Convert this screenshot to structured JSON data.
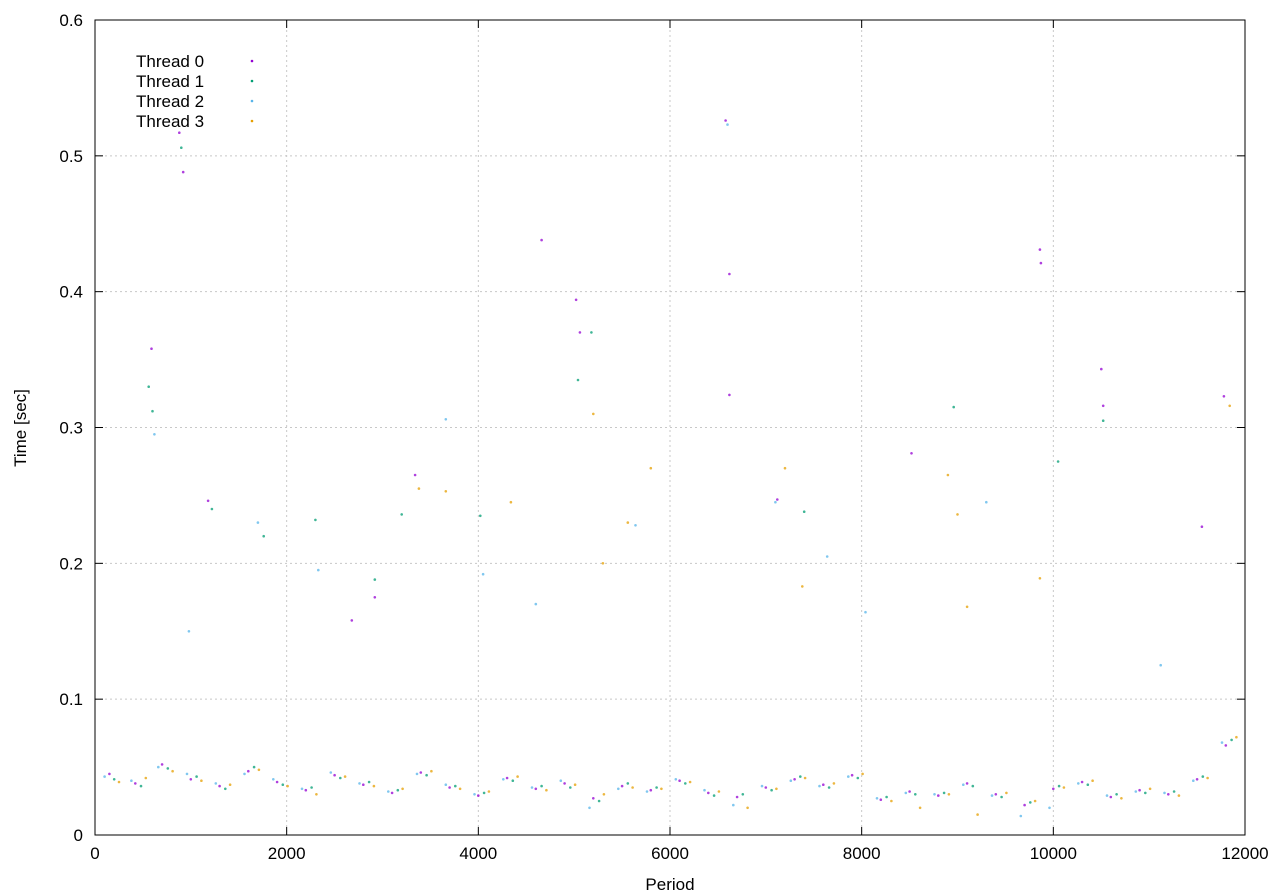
{
  "chart_data": {
    "type": "scatter",
    "title": "",
    "xlabel": "Period",
    "ylabel": "Time [sec]",
    "xlim": [
      0,
      12000
    ],
    "ylim": [
      0,
      0.6
    ],
    "xticks": [
      0,
      2000,
      4000,
      6000,
      8000,
      10000,
      12000
    ],
    "yticks": [
      0,
      0.1,
      0.2,
      0.3,
      0.4,
      0.5,
      0.6
    ],
    "xtick_labels": [
      "0",
      "2000",
      "4000",
      "6000",
      "8000",
      "10000",
      "12000"
    ],
    "ytick_labels": [
      "0",
      "0.1",
      "0.2",
      "0.3",
      "0.4",
      "0.5",
      "0.6"
    ],
    "grid": true,
    "legend_position": "top-left",
    "series": [
      {
        "name": "Thread 0",
        "color": "#9400d3",
        "points": [
          [
            150,
            0.045
          ],
          [
            420,
            0.038
          ],
          [
            700,
            0.052
          ],
          [
            1000,
            0.041
          ],
          [
            1300,
            0.036
          ],
          [
            1600,
            0.047
          ],
          [
            1900,
            0.039
          ],
          [
            2200,
            0.033
          ],
          [
            2500,
            0.044
          ],
          [
            2800,
            0.037
          ],
          [
            3100,
            0.031
          ],
          [
            3400,
            0.046
          ],
          [
            3700,
            0.035
          ],
          [
            4000,
            0.029
          ],
          [
            4300,
            0.042
          ],
          [
            4600,
            0.034
          ],
          [
            4900,
            0.038
          ],
          [
            5200,
            0.027
          ],
          [
            5500,
            0.036
          ],
          [
            5800,
            0.033
          ],
          [
            6100,
            0.04
          ],
          [
            6400,
            0.031
          ],
          [
            6700,
            0.028
          ],
          [
            7000,
            0.035
          ],
          [
            7300,
            0.041
          ],
          [
            7600,
            0.037
          ],
          [
            7900,
            0.044
          ],
          [
            8200,
            0.026
          ],
          [
            8500,
            0.032
          ],
          [
            8800,
            0.029
          ],
          [
            9100,
            0.038
          ],
          [
            9400,
            0.03
          ],
          [
            9700,
            0.022
          ],
          [
            10000,
            0.034
          ],
          [
            10300,
            0.039
          ],
          [
            10600,
            0.028
          ],
          [
            10900,
            0.033
          ],
          [
            11200,
            0.03
          ],
          [
            11500,
            0.041
          ],
          [
            11800,
            0.066
          ],
          [
            880,
            0.517
          ],
          [
            920,
            0.488
          ],
          [
            590,
            0.358
          ],
          [
            1180,
            0.246
          ],
          [
            2680,
            0.158
          ],
          [
            2920,
            0.175
          ],
          [
            6580,
            0.526
          ],
          [
            6620,
            0.413
          ],
          [
            9860,
            0.431
          ],
          [
            9870,
            0.421
          ],
          [
            10500,
            0.343
          ],
          [
            10520,
            0.316
          ],
          [
            11780,
            0.323
          ],
          [
            5020,
            0.394
          ],
          [
            4660,
            0.438
          ],
          [
            5060,
            0.37
          ],
          [
            3340,
            0.265
          ],
          [
            6620,
            0.324
          ],
          [
            7120,
            0.247
          ],
          [
            8520,
            0.281
          ],
          [
            11550,
            0.227
          ]
        ]
      },
      {
        "name": "Thread 1",
        "color": "#009e73",
        "points": [
          [
            200,
            0.041
          ],
          [
            480,
            0.036
          ],
          [
            760,
            0.049
          ],
          [
            1060,
            0.043
          ],
          [
            1360,
            0.034
          ],
          [
            1660,
            0.05
          ],
          [
            1960,
            0.037
          ],
          [
            2260,
            0.035
          ],
          [
            2560,
            0.042
          ],
          [
            2860,
            0.039
          ],
          [
            3160,
            0.033
          ],
          [
            3460,
            0.044
          ],
          [
            3760,
            0.036
          ],
          [
            4060,
            0.031
          ],
          [
            4360,
            0.04
          ],
          [
            4660,
            0.036
          ],
          [
            4960,
            0.035
          ],
          [
            5260,
            0.025
          ],
          [
            5560,
            0.038
          ],
          [
            5860,
            0.035
          ],
          [
            6160,
            0.038
          ],
          [
            6460,
            0.029
          ],
          [
            6760,
            0.03
          ],
          [
            7060,
            0.033
          ],
          [
            7360,
            0.043
          ],
          [
            7660,
            0.035
          ],
          [
            7960,
            0.042
          ],
          [
            8260,
            0.028
          ],
          [
            8560,
            0.03
          ],
          [
            8860,
            0.031
          ],
          [
            9160,
            0.036
          ],
          [
            9460,
            0.028
          ],
          [
            9760,
            0.024
          ],
          [
            10060,
            0.036
          ],
          [
            10360,
            0.037
          ],
          [
            10660,
            0.03
          ],
          [
            10960,
            0.031
          ],
          [
            11260,
            0.032
          ],
          [
            11560,
            0.043
          ],
          [
            11860,
            0.07
          ],
          [
            560,
            0.33
          ],
          [
            600,
            0.312
          ],
          [
            900,
            0.506
          ],
          [
            1220,
            0.24
          ],
          [
            2300,
            0.232
          ],
          [
            2920,
            0.188
          ],
          [
            3200,
            0.236
          ],
          [
            4020,
            0.235
          ],
          [
            5040,
            0.335
          ],
          [
            5180,
            0.37
          ],
          [
            7400,
            0.238
          ],
          [
            8960,
            0.315
          ],
          [
            10050,
            0.275
          ],
          [
            10520,
            0.305
          ],
          [
            1760,
            0.22
          ]
        ]
      },
      {
        "name": "Thread 2",
        "color": "#56b4e9",
        "points": [
          [
            100,
            0.043
          ],
          [
            380,
            0.04
          ],
          [
            660,
            0.05
          ],
          [
            960,
            0.045
          ],
          [
            1260,
            0.038
          ],
          [
            1560,
            0.045
          ],
          [
            1860,
            0.041
          ],
          [
            2160,
            0.034
          ],
          [
            2460,
            0.046
          ],
          [
            2760,
            0.038
          ],
          [
            3060,
            0.032
          ],
          [
            3360,
            0.045
          ],
          [
            3660,
            0.037
          ],
          [
            3960,
            0.03
          ],
          [
            4260,
            0.041
          ],
          [
            4560,
            0.035
          ],
          [
            4860,
            0.04
          ],
          [
            5160,
            0.02
          ],
          [
            5460,
            0.034
          ],
          [
            5760,
            0.032
          ],
          [
            6060,
            0.041
          ],
          [
            6360,
            0.033
          ],
          [
            6660,
            0.022
          ],
          [
            6960,
            0.036
          ],
          [
            7260,
            0.04
          ],
          [
            7560,
            0.036
          ],
          [
            7860,
            0.043
          ],
          [
            8160,
            0.027
          ],
          [
            8460,
            0.031
          ],
          [
            8760,
            0.03
          ],
          [
            9060,
            0.037
          ],
          [
            9360,
            0.029
          ],
          [
            9660,
            0.014
          ],
          [
            9960,
            0.02
          ],
          [
            10260,
            0.038
          ],
          [
            10560,
            0.029
          ],
          [
            10860,
            0.032
          ],
          [
            11160,
            0.031
          ],
          [
            11460,
            0.04
          ],
          [
            11760,
            0.068
          ],
          [
            620,
            0.295
          ],
          [
            1700,
            0.23
          ],
          [
            2330,
            0.195
          ],
          [
            3660,
            0.306
          ],
          [
            4050,
            0.192
          ],
          [
            4600,
            0.17
          ],
          [
            5640,
            0.228
          ],
          [
            6600,
            0.523
          ],
          [
            7100,
            0.245
          ],
          [
            7640,
            0.205
          ],
          [
            8040,
            0.164
          ],
          [
            9300,
            0.245
          ],
          [
            11120,
            0.125
          ],
          [
            980,
            0.15
          ]
        ]
      },
      {
        "name": "Thread 3",
        "color": "#e69f00",
        "points": [
          [
            250,
            0.039
          ],
          [
            530,
            0.042
          ],
          [
            810,
            0.047
          ],
          [
            1110,
            0.04
          ],
          [
            1410,
            0.037
          ],
          [
            1710,
            0.048
          ],
          [
            2010,
            0.036
          ],
          [
            2310,
            0.03
          ],
          [
            2610,
            0.043
          ],
          [
            2910,
            0.036
          ],
          [
            3210,
            0.034
          ],
          [
            3510,
            0.047
          ],
          [
            3810,
            0.034
          ],
          [
            4110,
            0.032
          ],
          [
            4410,
            0.043
          ],
          [
            4710,
            0.033
          ],
          [
            5010,
            0.037
          ],
          [
            5310,
            0.03
          ],
          [
            5610,
            0.035
          ],
          [
            5910,
            0.034
          ],
          [
            6210,
            0.039
          ],
          [
            6510,
            0.032
          ],
          [
            6810,
            0.02
          ],
          [
            7110,
            0.034
          ],
          [
            7410,
            0.042
          ],
          [
            7710,
            0.038
          ],
          [
            8010,
            0.045
          ],
          [
            8310,
            0.025
          ],
          [
            8610,
            0.02
          ],
          [
            8910,
            0.03
          ],
          [
            9210,
            0.015
          ],
          [
            9510,
            0.031
          ],
          [
            9810,
            0.025
          ],
          [
            10110,
            0.035
          ],
          [
            10410,
            0.04
          ],
          [
            10710,
            0.027
          ],
          [
            11010,
            0.034
          ],
          [
            11310,
            0.029
          ],
          [
            11610,
            0.042
          ],
          [
            11910,
            0.072
          ],
          [
            3380,
            0.255
          ],
          [
            3660,
            0.253
          ],
          [
            5200,
            0.31
          ],
          [
            5560,
            0.23
          ],
          [
            5800,
            0.27
          ],
          [
            7200,
            0.27
          ],
          [
            7380,
            0.183
          ],
          [
            8900,
            0.265
          ],
          [
            9000,
            0.236
          ],
          [
            9100,
            0.168
          ],
          [
            9860,
            0.189
          ],
          [
            11840,
            0.316
          ],
          [
            4340,
            0.245
          ],
          [
            5300,
            0.2
          ]
        ]
      }
    ]
  }
}
